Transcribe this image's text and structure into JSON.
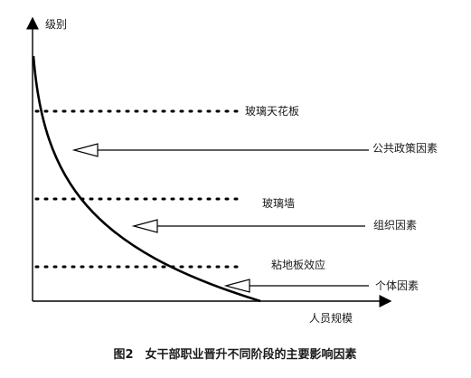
{
  "axes": {
    "y_label": "级别",
    "x_label": "人员规模"
  },
  "levels": [
    {
      "label": "玻璃天花板"
    },
    {
      "label": "玻璃墙"
    },
    {
      "label": "粘地板效应"
    }
  ],
  "factors": [
    {
      "label": "公共政策因素"
    },
    {
      "label": "组织因素"
    },
    {
      "label": "个体因素"
    }
  ],
  "caption": "图2　女干部职业晋升不同阶段的主要影响因素"
}
